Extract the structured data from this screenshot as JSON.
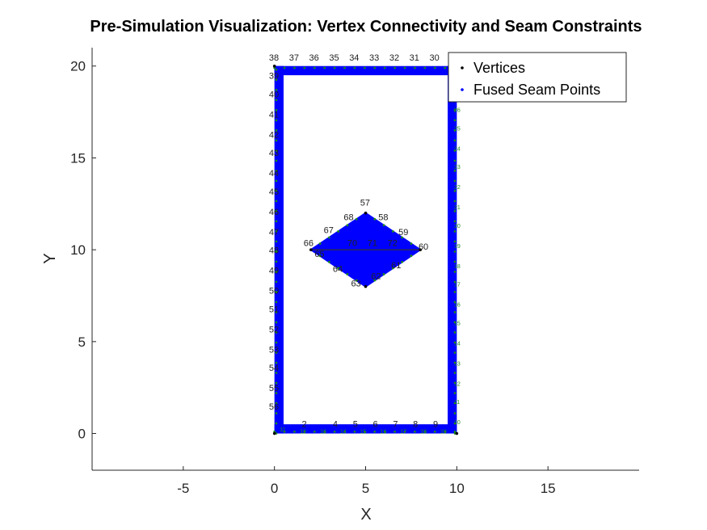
{
  "chart_data": {
    "type": "scatter",
    "title": "Pre-Simulation Visualization: Vertex Connectivity and Seam Constraints",
    "xlabel": "X",
    "ylabel": "Y",
    "xlim": [
      -10,
      20
    ],
    "ylim": [
      -2,
      21
    ],
    "xticks": [
      -5,
      0,
      5,
      10,
      15
    ],
    "yticks": [
      0,
      5,
      10,
      15,
      20
    ],
    "legend_position": "top-right",
    "colors": {
      "seam": "#0000ff",
      "vertex": "#000000",
      "seam_label": "#1a8a1a",
      "axis": "#262626"
    },
    "legend": [
      {
        "name": "Vertices",
        "marker": "dot",
        "color": "#000000"
      },
      {
        "name": "Fused Seam Points",
        "marker": "dot",
        "color": "#0000ff"
      }
    ],
    "outer_frame": {
      "x_min": 0,
      "x_max": 10,
      "y_min": 0,
      "y_max": 20,
      "wall_thickness": 0.5
    },
    "diamond": {
      "center": [
        5,
        10
      ],
      "half_width": 3,
      "half_height": 2
    },
    "vertex_labels": [
      {
        "label": "38",
        "x": -0.3,
        "y": 20.3
      },
      {
        "label": "37",
        "x": 0.8,
        "y": 20.3
      },
      {
        "label": "36",
        "x": 1.9,
        "y": 20.3
      },
      {
        "label": "35",
        "x": 3.0,
        "y": 20.3
      },
      {
        "label": "34",
        "x": 4.1,
        "y": 20.3
      },
      {
        "label": "33",
        "x": 5.2,
        "y": 20.3
      },
      {
        "label": "32",
        "x": 6.3,
        "y": 20.3
      },
      {
        "label": "31",
        "x": 7.4,
        "y": 20.3
      },
      {
        "label": "30",
        "x": 8.5,
        "y": 20.3
      },
      {
        "label": "39",
        "x": -0.3,
        "y": 19.3
      },
      {
        "label": "40",
        "x": -0.3,
        "y": 18.3
      },
      {
        "label": "41",
        "x": -0.3,
        "y": 17.2
      },
      {
        "label": "42",
        "x": -0.3,
        "y": 16.1
      },
      {
        "label": "43",
        "x": -0.3,
        "y": 15.1
      },
      {
        "label": "44",
        "x": -0.3,
        "y": 14.0
      },
      {
        "label": "45",
        "x": -0.3,
        "y": 13.0
      },
      {
        "label": "46",
        "x": -0.3,
        "y": 11.9
      },
      {
        "label": "47",
        "x": -0.3,
        "y": 10.8
      },
      {
        "label": "48",
        "x": -0.3,
        "y": 9.8
      },
      {
        "label": "49",
        "x": -0.3,
        "y": 8.7
      },
      {
        "label": "50",
        "x": -0.3,
        "y": 7.6
      },
      {
        "label": "51",
        "x": -0.3,
        "y": 6.6
      },
      {
        "label": "52",
        "x": -0.3,
        "y": 5.5
      },
      {
        "label": "53",
        "x": -0.3,
        "y": 4.4
      },
      {
        "label": "54",
        "x": -0.3,
        "y": 3.4
      },
      {
        "label": "55",
        "x": -0.3,
        "y": 2.3
      },
      {
        "label": "56",
        "x": -0.3,
        "y": 1.3
      },
      {
        "label": "57",
        "x": 4.7,
        "y": 12.4
      },
      {
        "label": "58",
        "x": 5.7,
        "y": 11.6
      },
      {
        "label": "59",
        "x": 6.8,
        "y": 10.8
      },
      {
        "label": "60",
        "x": 7.9,
        "y": 10.0
      },
      {
        "label": "61",
        "x": 6.4,
        "y": 9.0
      },
      {
        "label": "62",
        "x": 5.3,
        "y": 8.4
      },
      {
        "label": "63",
        "x": 4.2,
        "y": 8.0
      },
      {
        "label": "64",
        "x": 3.2,
        "y": 8.8
      },
      {
        "label": "65",
        "x": 2.2,
        "y": 9.6
      },
      {
        "label": "66",
        "x": 1.6,
        "y": 10.2
      },
      {
        "label": "67",
        "x": 2.7,
        "y": 10.9
      },
      {
        "label": "68",
        "x": 3.8,
        "y": 11.6
      },
      {
        "label": "70",
        "x": 4.0,
        "y": 10.2
      },
      {
        "label": "71",
        "x": 5.1,
        "y": 10.2
      },
      {
        "label": "72",
        "x": 6.2,
        "y": 10.2
      },
      {
        "label": "2",
        "x": 1.5,
        "y": 0.35
      },
      {
        "label": "4",
        "x": 3.2,
        "y": 0.35
      },
      {
        "label": "5",
        "x": 4.3,
        "y": 0.35
      },
      {
        "label": "6",
        "x": 5.4,
        "y": 0.35
      },
      {
        "label": "7",
        "x": 6.5,
        "y": 0.35
      },
      {
        "label": "8",
        "x": 7.6,
        "y": 0.35
      },
      {
        "label": "9",
        "x": 8.7,
        "y": 0.35
      }
    ],
    "seam_labels": [
      {
        "label": "10",
        "x": 9.85,
        "y": 0.5
      },
      {
        "label": "11",
        "x": 9.85,
        "y": 1.6
      },
      {
        "label": "12",
        "x": 9.85,
        "y": 2.6
      },
      {
        "label": "13",
        "x": 9.85,
        "y": 3.7
      },
      {
        "label": "14",
        "x": 9.85,
        "y": 4.8
      },
      {
        "label": "15",
        "x": 9.85,
        "y": 5.9
      },
      {
        "label": "16",
        "x": 9.85,
        "y": 6.9
      },
      {
        "label": "17",
        "x": 9.85,
        "y": 8.0
      },
      {
        "label": "18",
        "x": 9.85,
        "y": 9.0
      },
      {
        "label": "19",
        "x": 9.85,
        "y": 10.1
      },
      {
        "label": "20",
        "x": 9.85,
        "y": 11.2
      },
      {
        "label": "21",
        "x": 9.85,
        "y": 12.2
      },
      {
        "label": "22",
        "x": 9.85,
        "y": 13.3
      },
      {
        "label": "23",
        "x": 9.85,
        "y": 14.4
      },
      {
        "label": "24",
        "x": 9.85,
        "y": 15.4
      },
      {
        "label": "25",
        "x": 9.85,
        "y": 16.5
      },
      {
        "label": "26",
        "x": 9.85,
        "y": 17.5
      },
      {
        "label": "11",
        "x": 0.3,
        "y": 0.1
      },
      {
        "label": "12",
        "x": 1.4,
        "y": 0.0
      },
      {
        "label": "13",
        "x": 2.5,
        "y": 0.0
      },
      {
        "label": "14",
        "x": 3.6,
        "y": 0.0
      },
      {
        "label": "15",
        "x": 4.7,
        "y": 0.0
      },
      {
        "label": "16",
        "x": 5.8,
        "y": 0.0
      },
      {
        "label": "17",
        "x": 6.9,
        "y": 0.0
      },
      {
        "label": "18",
        "x": 8.0,
        "y": 0.0
      },
      {
        "label": "19",
        "x": 9.1,
        "y": 0.0
      }
    ]
  }
}
